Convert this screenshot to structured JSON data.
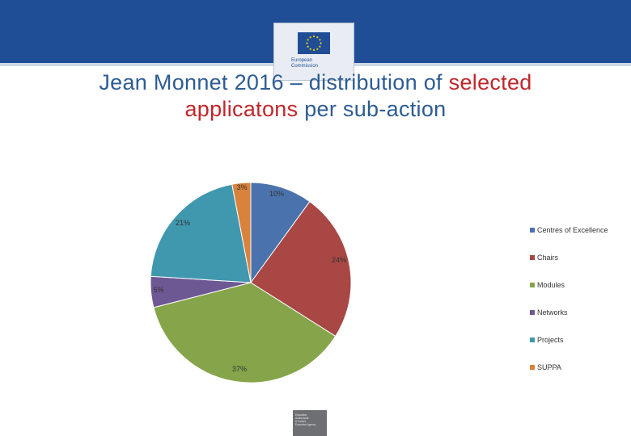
{
  "header": {
    "logo_text": "European\nCommission"
  },
  "title": {
    "part1": "Jean Monnet 2016 – distribution of ",
    "part2": "selected",
    "part3": "applicatons",
    "part4": " per sub-action"
  },
  "footer": {
    "agency_text": "Education,\nAudiovisual\n& Culture\nExecutive Agency"
  },
  "colors": {
    "header": "#1f4e96",
    "title": "#2d5c93",
    "title_highlight": "#c0262b"
  },
  "chart_data": {
    "type": "pie",
    "title": "",
    "categories": [
      "Centres of Excellence",
      "Chairs",
      "Modules",
      "Networks",
      "Projects",
      "SUPPA"
    ],
    "values": [
      10,
      24,
      37,
      5,
      21,
      3
    ],
    "labels": [
      "10%",
      "24%",
      "37%",
      "5%",
      "21%",
      "3%"
    ],
    "colors": [
      "#4a73ad",
      "#a84744",
      "#86a44a",
      "#6d5893",
      "#3f98ae",
      "#d9823b"
    ],
    "start_angle_deg": 0,
    "direction": "clockwise",
    "legend": "right"
  }
}
